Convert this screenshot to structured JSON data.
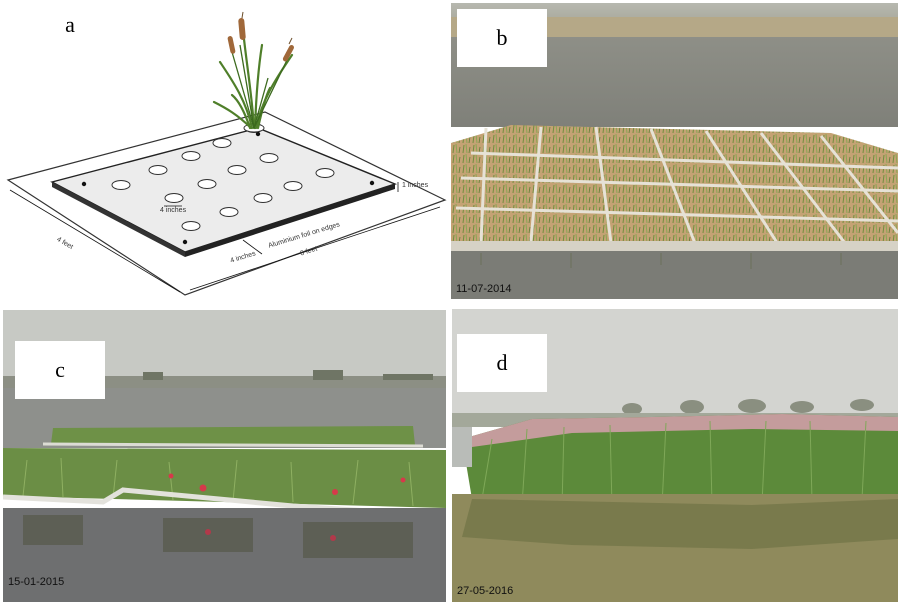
{
  "panels": {
    "a": {
      "label": "a",
      "dimension_labels": {
        "plate_thickness": "1 inches",
        "hole_diameter": "4 inches",
        "edge_note": "Aluminium foil on edges",
        "edge_offset": "4 inches",
        "length": "6 feet",
        "width": "4 feet"
      }
    },
    "b": {
      "label": "b",
      "date": "11-07-2014"
    },
    "c": {
      "label": "c",
      "date": "15-01-2015"
    },
    "d": {
      "label": "d",
      "date": "27-05-2016"
    }
  },
  "colors": {
    "water": "#8a8c85",
    "soil": "#c9a877",
    "plant_green": "#5e8d3a",
    "reed_pink": "#c89a9a"
  }
}
